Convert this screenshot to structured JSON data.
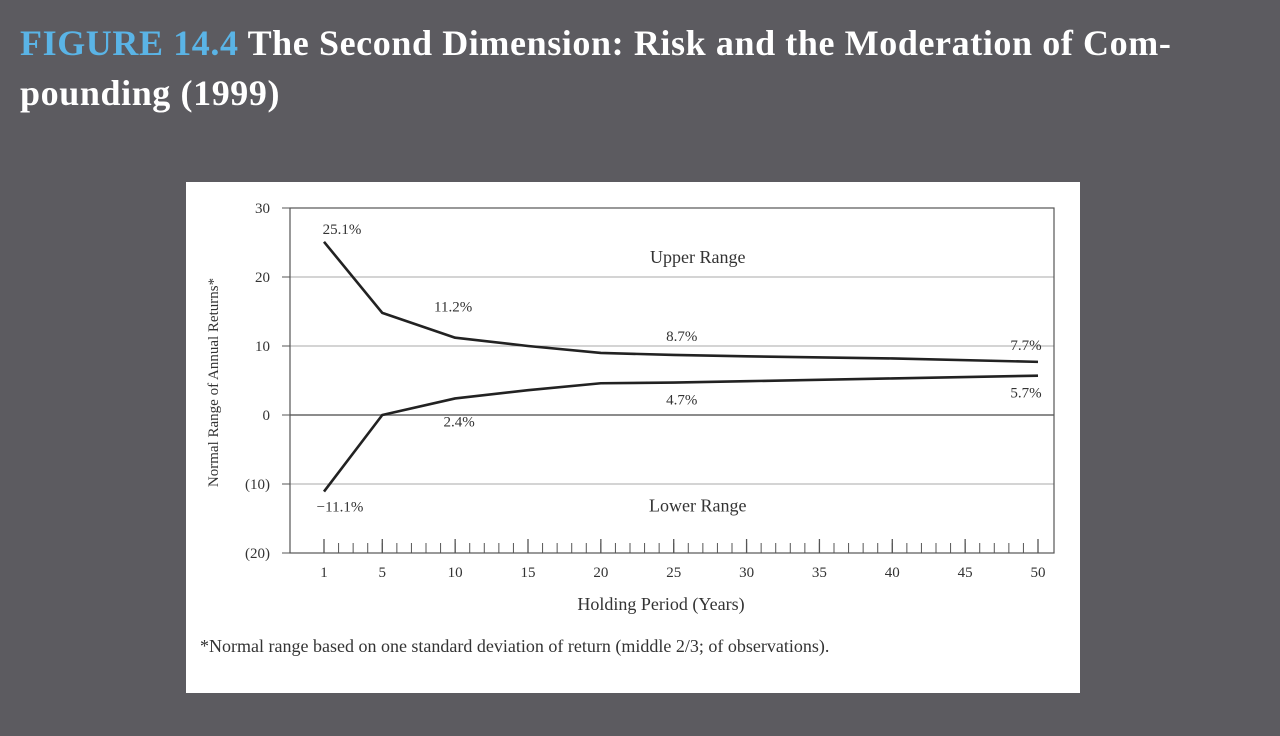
{
  "caption": {
    "figure_number": "FIGURE 14.4",
    "title_line1": " The Second Dimension: Risk and the Moderation of Com-",
    "title_line2": "pounding (1999)"
  },
  "footnote": "*Normal range based on one standard deviation of return (middle 2/3; of observations).",
  "colors": {
    "background": "#5c5b60",
    "figure_number": "#5ab4e6",
    "panel": "#ffffff",
    "line": "#222222"
  },
  "chart_data": {
    "type": "line",
    "title": "",
    "xlabel": "Holding Period (Years)",
    "ylabel": "Normal Range of Annual Returns*",
    "xlim": [
      1,
      50
    ],
    "ylim": [
      -20,
      30
    ],
    "yticks": [
      30,
      20,
      10,
      0,
      -10,
      -20
    ],
    "ytick_labels": [
      "30",
      "20",
      "10",
      "0",
      "(10)",
      "(20)"
    ],
    "xtick_labels": [
      "1",
      "5",
      "10",
      "15",
      "20",
      "25",
      "30",
      "35",
      "40",
      "45",
      "50"
    ],
    "xtick_values": [
      1,
      5,
      10,
      15,
      20,
      25,
      30,
      35,
      40,
      45,
      50
    ],
    "grid": true,
    "series": [
      {
        "name": "",
        "x": [
          1,
          5,
          10,
          15,
          20,
          25,
          30,
          40,
          50
        ],
        "values": [
          25.1,
          14.8,
          11.2,
          10.0,
          9.0,
          8.7,
          8.5,
          8.2,
          7.7
        ]
      },
      {
        "name": "",
        "x": [
          1,
          5,
          10,
          15,
          20,
          25,
          30,
          40,
          50
        ],
        "values": [
          -11.1,
          0.0,
          2.4,
          3.6,
          4.6,
          4.7,
          4.9,
          5.3,
          5.7
        ]
      }
    ],
    "annotations": [
      {
        "text": "25.1%",
        "x": 1,
        "y": 25.1
      },
      {
        "text": "11.2%",
        "x": 10,
        "y": 11.2
      },
      {
        "text": "8.7%",
        "x": 25,
        "y": 8.7
      },
      {
        "text": "7.7%",
        "x": 50,
        "y": 7.7
      },
      {
        "text": "4.7%",
        "x": 25,
        "y": 4.7
      },
      {
        "text": "5.7%",
        "x": 50,
        "y": 5.7
      },
      {
        "text": "2.4%",
        "x": 10,
        "y": 2.4
      },
      {
        "text": "−11.1%",
        "x": 1,
        "y": -11.1
      },
      {
        "text": "Upper Range",
        "x": 25,
        "y": 22
      },
      {
        "text": "Lower Range",
        "x": 25,
        "y": -14
      }
    ]
  }
}
